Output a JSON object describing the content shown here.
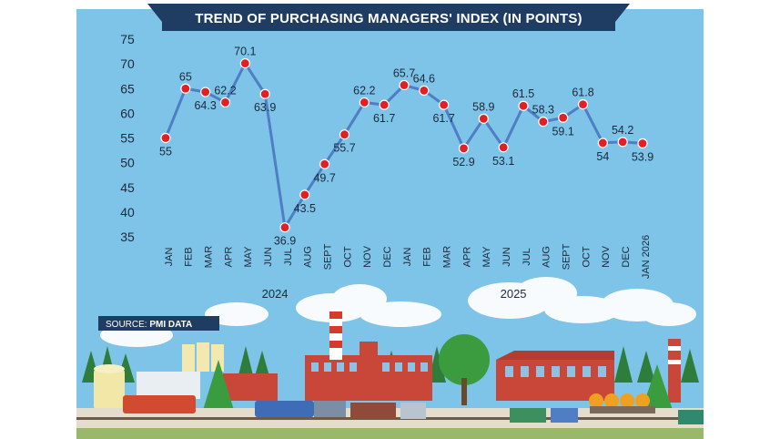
{
  "header": {
    "title": "TREND OF PURCHASING MANAGERS' INDEX (IN POINTS)"
  },
  "source": {
    "prefix": "SOURCE: ",
    "name": "PMI DATA"
  },
  "colors": {
    "background": "#7ec3e8",
    "header_bg": "#1f3d63",
    "line": "#4f7ec4",
    "marker": "#e31e24",
    "text": "#1b2a3a"
  },
  "chart_data": {
    "type": "line",
    "title": "TREND OF PURCHASING MANAGERS' INDEX (IN POINTS)",
    "categories": [
      "JAN",
      "FEB",
      "MAR",
      "APR",
      "MAY",
      "JUN",
      "JUL",
      "AUG",
      "SEPT",
      "OCT",
      "NOV",
      "DEC",
      "JAN",
      "FEB",
      "MAR",
      "APR",
      "MAY",
      "JUN",
      "JUL",
      "AUG",
      "SEPT",
      "OCT",
      "NOV",
      "DEC",
      "JAN 2026"
    ],
    "values": [
      55,
      65,
      64.3,
      62.2,
      70.1,
      63.9,
      36.9,
      43.5,
      49.7,
      55.7,
      62.2,
      61.7,
      65.7,
      64.6,
      61.7,
      52.9,
      58.9,
      53.1,
      61.5,
      58.3,
      59.1,
      61.8,
      54,
      54.2,
      53.9
    ],
    "value_labels": [
      "55",
      "65",
      "64.3",
      "62.2",
      "70.1",
      "63.9",
      "36.9",
      "43.5",
      "49.7",
      "55.7",
      "62.2",
      "61.7",
      "65.7",
      "64.6",
      "61.7",
      "52.9",
      "58.9",
      "53.1",
      "61.5",
      "58.3",
      "59.1",
      "61.8",
      "54",
      "54.2",
      "53.9"
    ],
    "label_pos": [
      "below",
      "above",
      "below",
      "above",
      "above",
      "below",
      "below",
      "below",
      "below",
      "below",
      "above",
      "below",
      "above",
      "above",
      "below",
      "below",
      "above",
      "below",
      "above",
      "above",
      "below",
      "above",
      "below",
      "above",
      "below"
    ],
    "year_groups": [
      {
        "label": "2024",
        "start": 0,
        "end": 11
      },
      {
        "label": "2025",
        "start": 12,
        "end": 23
      }
    ],
    "yticks": [
      35,
      40,
      45,
      50,
      55,
      60,
      65,
      70,
      75
    ],
    "ylim": [
      35,
      75
    ],
    "xlabel": "",
    "ylabel": "",
    "grid": false,
    "legend": "none"
  }
}
